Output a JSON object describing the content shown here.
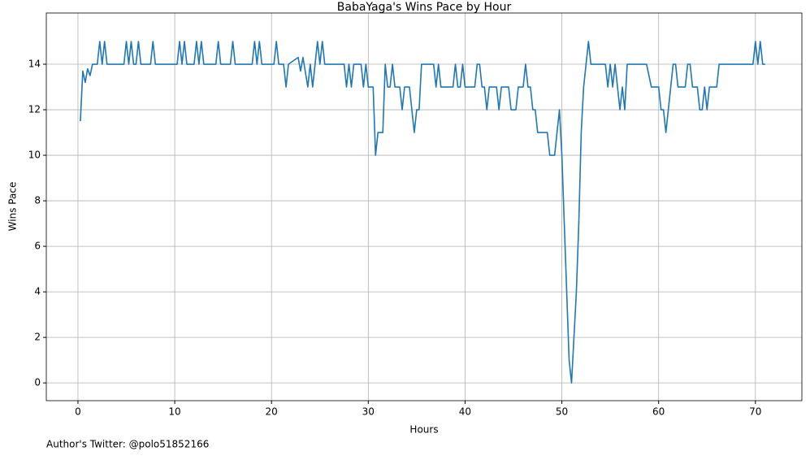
{
  "chart_data": {
    "type": "line",
    "title": "BabaYaga's Wins Pace by Hour",
    "xlabel": "Hours",
    "ylabel": "Wins Pace",
    "annotation": "Author's Twitter: @polo51852166",
    "x": [
      0.25,
      0.5,
      0.75,
      1,
      1.25,
      1.5,
      2,
      2.25,
      2.5,
      2.75,
      3,
      4.75,
      5,
      5.25,
      5.5,
      5.75,
      6,
      6.25,
      6.5,
      7.5,
      7.75,
      8,
      10.25,
      10.5,
      10.75,
      11,
      11.25,
      12,
      12.25,
      12.5,
      12.75,
      13,
      14.25,
      14.5,
      14.75,
      15.75,
      16,
      16.25,
      18,
      18.25,
      18.5,
      18.75,
      19,
      20.25,
      20.5,
      20.75,
      21.25,
      21.5,
      21.75,
      22.75,
      23,
      23.25,
      23.75,
      24,
      24.25,
      24.75,
      25,
      25.25,
      25.5,
      27.5,
      27.75,
      28,
      28.25,
      28.5,
      29.25,
      29.5,
      29.75,
      30,
      30.5,
      30.75,
      31,
      31.5,
      31.75,
      32,
      32.25,
      32.5,
      32.75,
      33.25,
      33.5,
      33.75,
      34.25,
      34.5,
      34.75,
      35,
      35.25,
      35.5,
      36.75,
      37,
      37.25,
      37.5,
      38.75,
      39,
      39.25,
      39.5,
      39.75,
      40,
      41,
      41.25,
      41.5,
      41.75,
      42,
      42.25,
      42.5,
      43.25,
      43.5,
      43.75,
      44.5,
      44.75,
      45.25,
      45.5,
      46,
      46.25,
      46.5,
      46.75,
      47,
      47.25,
      47.5,
      48.5,
      48.75,
      49.25,
      49.5,
      49.75,
      50,
      50.25,
      50.5,
      50.75,
      51,
      51.25,
      51.5,
      51.75,
      52,
      52.25,
      52.5,
      52.75,
      53,
      54.5,
      54.75,
      55,
      55.25,
      55.5,
      55.75,
      56,
      56.25,
      56.5,
      56.75,
      58.75,
      59.25,
      60,
      60.25,
      60.5,
      60.75,
      61,
      61.25,
      61.5,
      61.75,
      62,
      62.75,
      63,
      63.25,
      63.5,
      64,
      64.25,
      64.5,
      64.75,
      65,
      65.25,
      65.75,
      66,
      66.25,
      69.75,
      70,
      70.25,
      70.5,
      70.75,
      71
    ],
    "series": [
      {
        "name": "Wins Pace",
        "color": "#1f77b4",
        "values": [
          11.5,
          13.7,
          13.2,
          13.8,
          13.5,
          14,
          14,
          15,
          14,
          15,
          14,
          14,
          15,
          14,
          15,
          14,
          14,
          15,
          14,
          14,
          15,
          14,
          14,
          15,
          14,
          15,
          14,
          14,
          15,
          14,
          15,
          14,
          14,
          15,
          14,
          14,
          15,
          14,
          14,
          15,
          14,
          15,
          14,
          14,
          15,
          14,
          14,
          13,
          14,
          14.3,
          13.7,
          14.3,
          13,
          14,
          13,
          15,
          14,
          15,
          14,
          14,
          13,
          14,
          13,
          14,
          14,
          13,
          14,
          13,
          13,
          10,
          11,
          11,
          14,
          13,
          13,
          14,
          13,
          13,
          12,
          13,
          13,
          12,
          11,
          12,
          12,
          14,
          14,
          13,
          14,
          13,
          13,
          14,
          13,
          13,
          14,
          13,
          13,
          14,
          14,
          13,
          13,
          12,
          13,
          13,
          12,
          13,
          13,
          12,
          12,
          13,
          13,
          14,
          13,
          13,
          12,
          12,
          11,
          11,
          10,
          10,
          11,
          12,
          10,
          7,
          4,
          1,
          0,
          2,
          4,
          7,
          11,
          13,
          14,
          15,
          14,
          14,
          13,
          14,
          13,
          14,
          13,
          12,
          13,
          12,
          14,
          14,
          13,
          13,
          12,
          12,
          11,
          12,
          13,
          14,
          14,
          13,
          13,
          14,
          14,
          13,
          13,
          12,
          12,
          13,
          12,
          13,
          13,
          13,
          14,
          14,
          15,
          14,
          15,
          14,
          14
        ]
      }
    ],
    "xlim": [
      -3.27,
      74.8
    ],
    "ylim": [
      -0.78,
      16.25
    ],
    "xticks": [
      0,
      10,
      20,
      30,
      40,
      50,
      60,
      70
    ],
    "yticks": [
      0,
      2,
      4,
      6,
      8,
      10,
      12,
      14
    ],
    "grid": true
  }
}
